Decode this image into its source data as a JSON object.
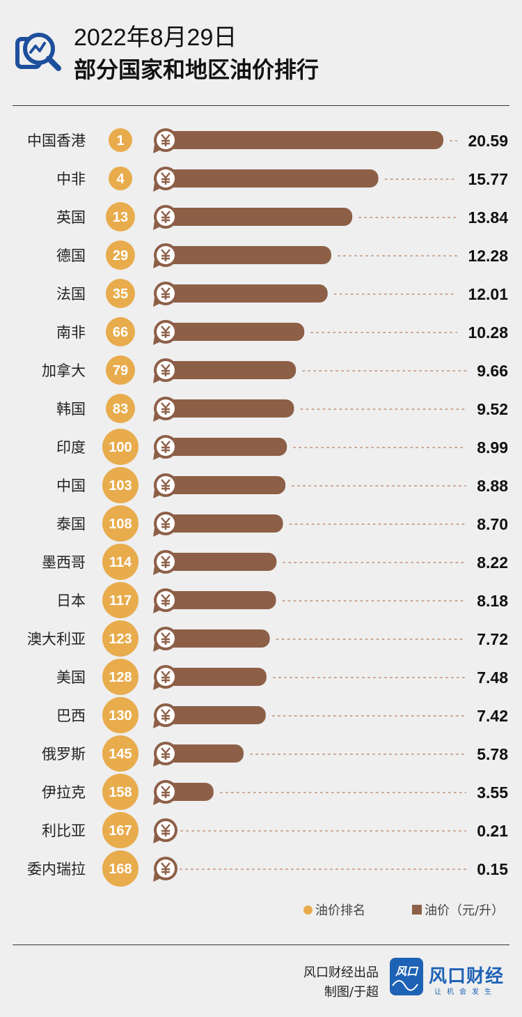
{
  "header": {
    "date": "2022年8月29日",
    "title": "部分国家和地区油价排行"
  },
  "legend": {
    "rank_label": "油价排名",
    "price_label": "油价（元/升）"
  },
  "footer": {
    "credit_line1": "风口财经出品",
    "credit_line2": "制图/于超",
    "brand_logo_text": "风口",
    "brand_name": "风口财经",
    "brand_slogan": "让机会发生"
  },
  "colors": {
    "bar": "#8d5f47",
    "rank_circle": "#e8ac4d",
    "coin": "#8d5f47",
    "dots": "#c9a48e",
    "brand": "#1e62b5"
  },
  "icons": {
    "header": "search-chart-icon",
    "coin": "yuan-coin-icon"
  },
  "chart_data": {
    "type": "bar",
    "orientation": "horizontal",
    "title": "部分国家和地区油价排行",
    "categories": [
      "中国香港",
      "中非",
      "英国",
      "德国",
      "法国",
      "南非",
      "加拿大",
      "韩国",
      "印度",
      "中国",
      "泰国",
      "墨西哥",
      "日本",
      "澳大利亚",
      "美国",
      "巴西",
      "俄罗斯",
      "伊拉克",
      "利比亚",
      "委内瑞拉"
    ],
    "ranks": [
      "1",
      "4",
      "13",
      "29",
      "35",
      "66",
      "79",
      "83",
      "100",
      "103",
      "108",
      "114",
      "117",
      "123",
      "128",
      "130",
      "145",
      "158",
      "167",
      "168"
    ],
    "values": [
      "20.59",
      "15.77",
      "13.84",
      "12.28",
      "12.01",
      "10.28",
      "9.66",
      "9.52",
      "8.99",
      "8.88",
      "8.70",
      "8.22",
      "8.18",
      "7.72",
      "7.48",
      "7.42",
      "5.78",
      "3.55",
      "0.21",
      "0.15"
    ],
    "series": [
      {
        "name": "油价排名"
      },
      {
        "name": "油价（元/升）"
      }
    ],
    "xlim": [
      0,
      20.59
    ],
    "grid": false,
    "legend_position": "bottom-right"
  }
}
